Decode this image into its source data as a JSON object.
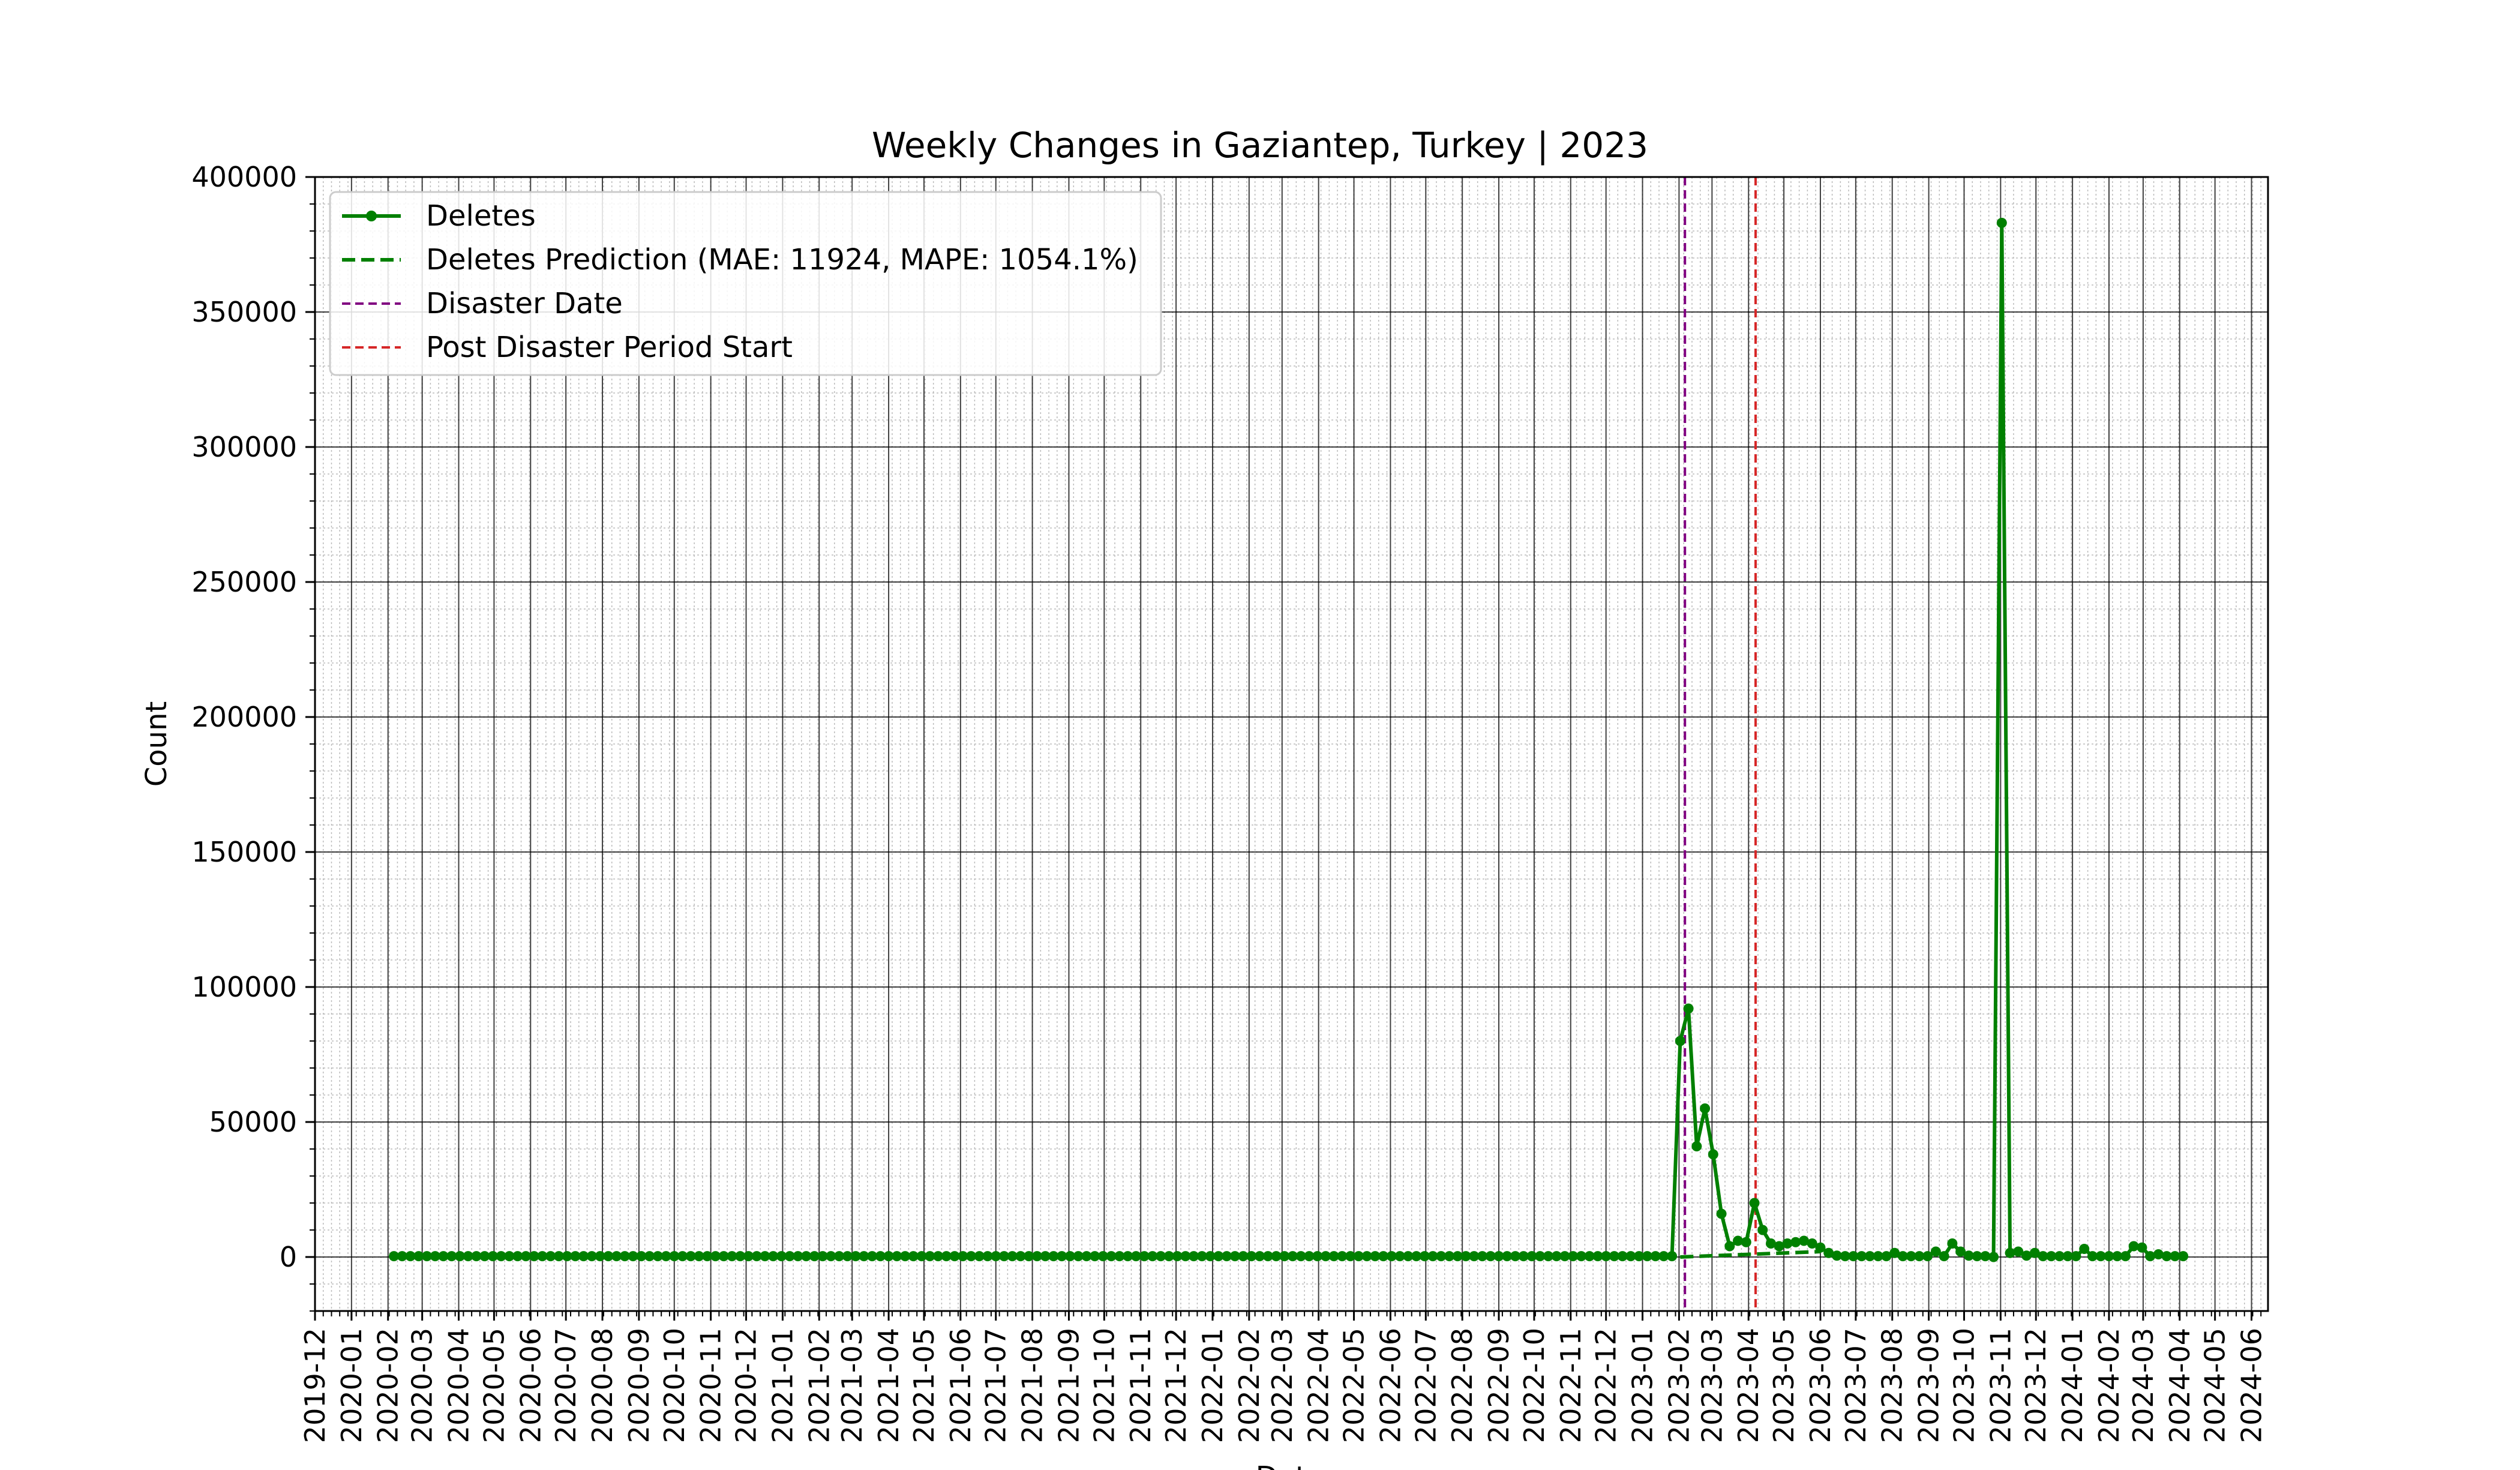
{
  "chart_data": {
    "type": "line",
    "title": "Weekly Changes in Gaziantep, Turkey | 2023",
    "xlabel": "Date",
    "ylabel": "Count",
    "ylim": [
      -20000,
      400000
    ],
    "xlim": [
      "2019-12-01",
      "2024-06-15"
    ],
    "y_ticks": [
      0,
      50000,
      100000,
      150000,
      200000,
      250000,
      300000,
      350000,
      400000
    ],
    "y_tick_labels": [
      "0",
      "50000",
      "100000",
      "150000",
      "200000",
      "250000",
      "300000",
      "350000",
      "400000"
    ],
    "x_ticks": [
      "2019-12-01",
      "2020-01-01",
      "2020-02-01",
      "2020-03-01",
      "2020-04-01",
      "2020-05-01",
      "2020-06-01",
      "2020-07-01",
      "2020-08-01",
      "2020-09-01",
      "2020-10-01",
      "2020-11-01",
      "2020-12-01",
      "2021-01-01",
      "2021-02-01",
      "2021-03-01",
      "2021-04-01",
      "2021-05-01",
      "2021-06-01",
      "2021-07-01",
      "2021-08-01",
      "2021-09-01",
      "2021-10-01",
      "2021-11-01",
      "2021-12-01",
      "2022-01-01",
      "2022-02-01",
      "2022-03-01",
      "2022-04-01",
      "2022-05-01",
      "2022-06-01",
      "2022-07-01",
      "2022-08-01",
      "2022-09-01",
      "2022-10-01",
      "2022-11-01",
      "2022-12-01",
      "2023-01-01",
      "2023-02-01",
      "2023-03-01",
      "2023-04-01",
      "2023-05-01",
      "2023-06-01",
      "2023-07-01",
      "2023-08-01",
      "2023-09-01",
      "2023-10-01",
      "2023-11-01",
      "2023-12-01",
      "2024-01-01",
      "2024-02-01",
      "2024-03-01",
      "2024-04-01",
      "2024-05-01",
      "2024-06-01"
    ],
    "x_tick_labels": [
      "2019-12",
      "2020-01",
      "2020-02",
      "2020-03",
      "2020-04",
      "2020-05",
      "2020-06",
      "2020-07",
      "2020-08",
      "2020-09",
      "2020-10",
      "2020-11",
      "2020-12",
      "2021-01",
      "2021-02",
      "2021-03",
      "2021-04",
      "2021-05",
      "2021-06",
      "2021-07",
      "2021-08",
      "2021-09",
      "2021-10",
      "2021-11",
      "2021-12",
      "2022-01",
      "2022-02",
      "2022-03",
      "2022-04",
      "2022-05",
      "2022-06",
      "2022-07",
      "2022-08",
      "2022-09",
      "2022-10",
      "2022-11",
      "2022-12",
      "2023-01",
      "2023-02",
      "2023-03",
      "2023-04",
      "2023-05",
      "2023-06",
      "2023-07",
      "2023-08",
      "2023-09",
      "2023-10",
      "2023-11",
      "2023-12",
      "2024-01",
      "2024-02",
      "2024-03",
      "2024-04",
      "2024-05",
      "2024-06"
    ],
    "grid": true,
    "legend_position": "top-left",
    "series": [
      {
        "name": "Deletes",
        "style": "solid line with circle markers",
        "color": "#008000",
        "weekly_start": "2020-02-06",
        "weekly_end": "2024-04-04",
        "baseline_value": 300,
        "notable_points": [
          {
            "x": "2023-02-02",
            "y": 80000
          },
          {
            "x": "2023-02-09",
            "y": 92000
          },
          {
            "x": "2023-02-16",
            "y": 41000
          },
          {
            "x": "2023-02-23",
            "y": 55000
          },
          {
            "x": "2023-03-02",
            "y": 38000
          },
          {
            "x": "2023-03-09",
            "y": 16000
          },
          {
            "x": "2023-03-16",
            "y": 4000
          },
          {
            "x": "2023-03-23",
            "y": 6000
          },
          {
            "x": "2023-03-30",
            "y": 5500
          },
          {
            "x": "2023-04-06",
            "y": 20000
          },
          {
            "x": "2023-04-13",
            "y": 10000
          },
          {
            "x": "2023-04-20",
            "y": 5000
          },
          {
            "x": "2023-04-27",
            "y": 4000
          },
          {
            "x": "2023-05-04",
            "y": 5000
          },
          {
            "x": "2023-05-11",
            "y": 5500
          },
          {
            "x": "2023-05-18",
            "y": 6000
          },
          {
            "x": "2023-05-25",
            "y": 5000
          },
          {
            "x": "2023-06-01",
            "y": 3500
          },
          {
            "x": "2023-06-08",
            "y": 1500
          },
          {
            "x": "2023-06-15",
            "y": 500
          },
          {
            "x": "2023-08-03",
            "y": 1500
          },
          {
            "x": "2023-09-07",
            "y": 2000
          },
          {
            "x": "2023-09-21",
            "y": 5000
          },
          {
            "x": "2023-09-28",
            "y": 2000
          },
          {
            "x": "2023-10-05",
            "y": 500
          },
          {
            "x": "2023-10-26",
            "y": 0
          },
          {
            "x": "2023-11-02",
            "y": 383000
          },
          {
            "x": "2023-11-09",
            "y": 1500
          },
          {
            "x": "2023-11-16",
            "y": 2000
          },
          {
            "x": "2023-11-23",
            "y": 500
          },
          {
            "x": "2023-11-30",
            "y": 1500
          },
          {
            "x": "2024-01-11",
            "y": 3000
          },
          {
            "x": "2024-02-22",
            "y": 4000
          },
          {
            "x": "2024-02-29",
            "y": 3500
          },
          {
            "x": "2024-03-14",
            "y": 1000
          }
        ]
      },
      {
        "name": "Deletes Prediction (MAE: 11924, MAPE: 1054.1%)",
        "style": "dashed",
        "color": "#008000",
        "x_start": "2023-02-02",
        "x_end": "2023-06-01",
        "y_start": 0,
        "y_end": 2000
      },
      {
        "name": "Disaster Date",
        "style": "dashed vertical line",
        "color": "#800080",
        "x": "2023-02-06"
      },
      {
        "name": "Post Disaster Period Start",
        "style": "dashed vertical line",
        "color": "#d62728",
        "x": "2023-04-07"
      }
    ]
  }
}
